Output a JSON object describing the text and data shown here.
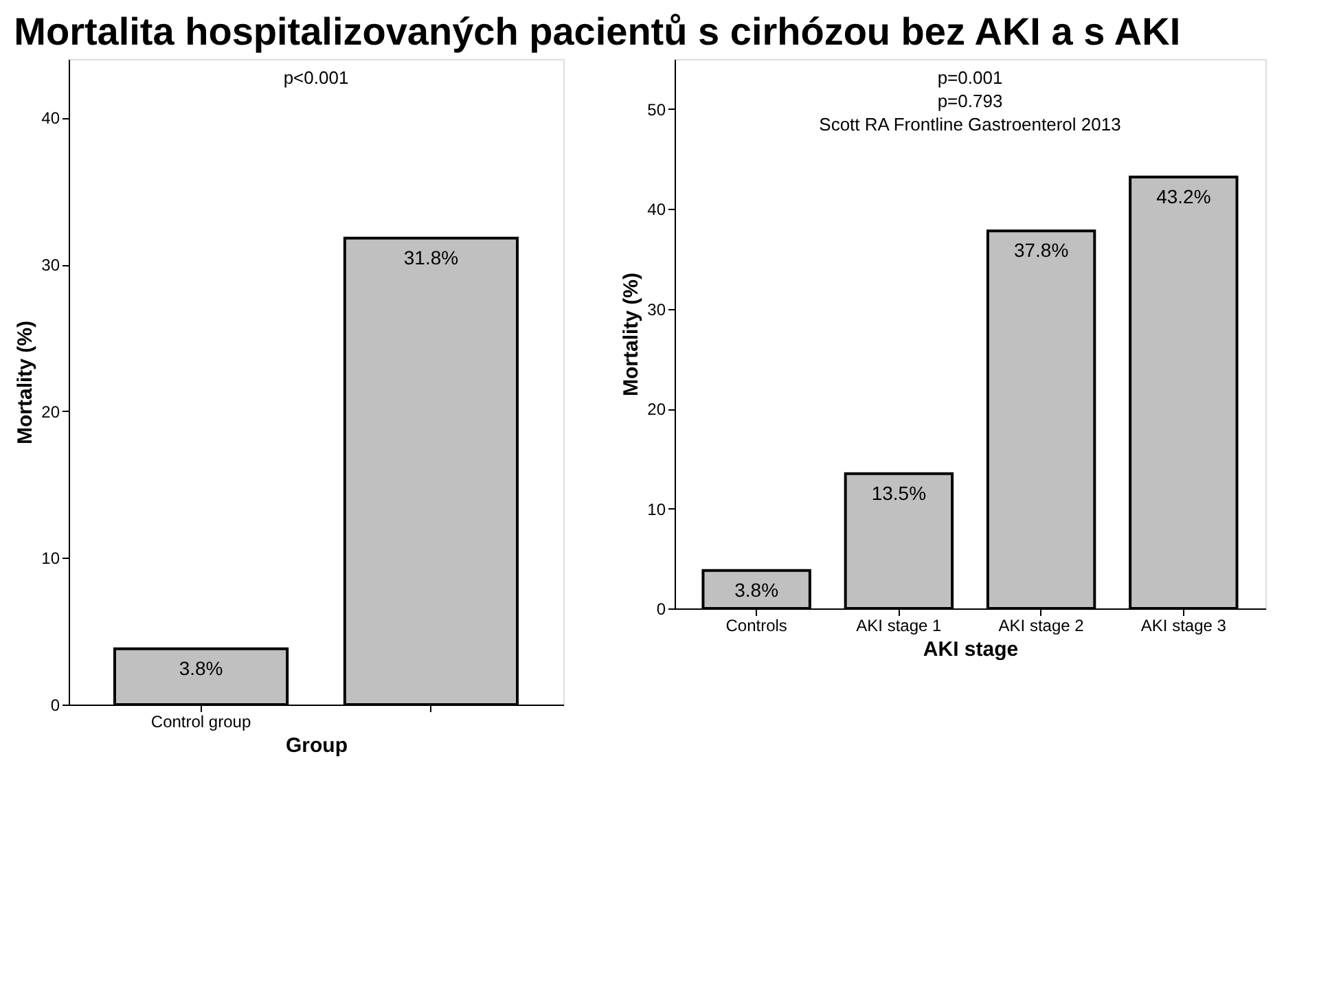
{
  "chart_data": [
    {
      "type": "bar",
      "title": "Mortalita hospitalizovaných pacientů s cirhózou bez AKI a s AKI",
      "categories": [
        "Control group",
        null
      ],
      "values": [
        3.8,
        31.8
      ],
      "value_labels": [
        "3.8%",
        "31.8%"
      ],
      "color": "#c0c0c0",
      "ylabel": "Mortality (%)",
      "xlabel": "Group",
      "ylim": [
        0,
        44
      ],
      "yticks": [
        0,
        10,
        20,
        30,
        40
      ],
      "grid": false,
      "annotations": [
        "p<0.001"
      ]
    },
    {
      "type": "bar",
      "categories": [
        "Controls",
        "AKI stage 1",
        "AKI stage 2",
        "AKI stage 3"
      ],
      "values": [
        3.8,
        13.5,
        37.8,
        43.2
      ],
      "value_labels": [
        "3.8%",
        "13.5%",
        "37.8%",
        "43.2%"
      ],
      "color": "#c0c0c0",
      "ylabel": "Mortality (%)",
      "xlabel": "AKI stage",
      "ylim": [
        0,
        55
      ],
      "yticks": [
        0,
        10,
        20,
        30,
        40,
        50
      ],
      "grid": false,
      "annotations": [
        "p=0.001",
        "p=0.793",
        "Scott RA Frontline Gastroenterol 2013"
      ]
    }
  ]
}
